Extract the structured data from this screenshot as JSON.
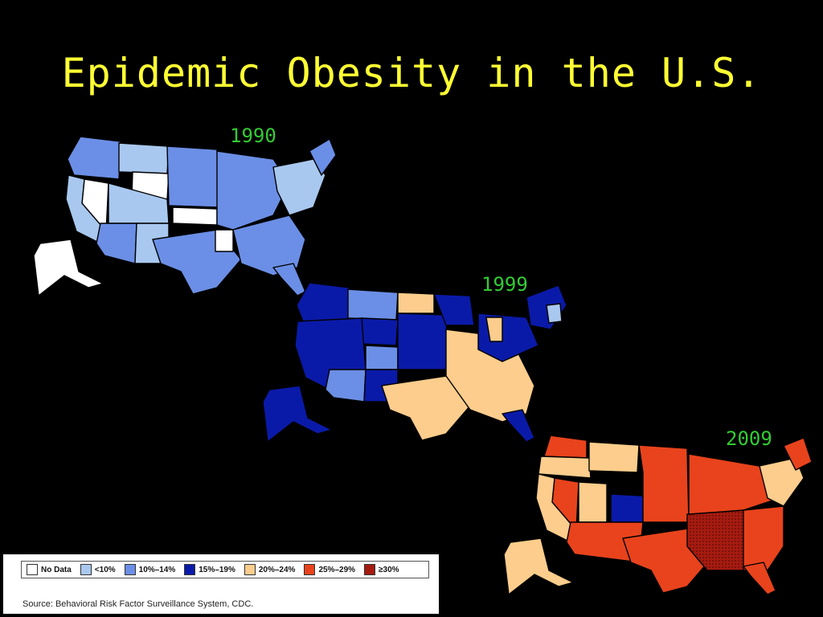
{
  "slide": {
    "title": "Epidemic Obesity in the U.S."
  },
  "maps": [
    {
      "year": "1990"
    },
    {
      "year": "1999"
    },
    {
      "year": "2009"
    }
  ],
  "colors": {
    "no_data": "#ffffff",
    "lt10": "#a9c8ef",
    "10_14": "#6b8fe6",
    "15_19": "#0a1aa8",
    "20_24": "#fccd8c",
    "25_29": "#e8431c",
    "ge30": "#a61b10"
  },
  "legend": {
    "items": [
      {
        "label": "No Data",
        "color": "#ffffff"
      },
      {
        "label": "<10%",
        "color": "#a9c8ef"
      },
      {
        "label": "10%–14%",
        "color": "#6b8fe6"
      },
      {
        "label": "15%–19%",
        "color": "#0a1aa8"
      },
      {
        "label": "20%–24%",
        "color": "#fccd8c"
      },
      {
        "label": "25%–29%",
        "color": "#e8431c"
      },
      {
        "label": "≥30%",
        "color": "#a61b10"
      }
    ],
    "source": "Source: Behavioral Risk Factor Surveillance System, CDC."
  }
}
